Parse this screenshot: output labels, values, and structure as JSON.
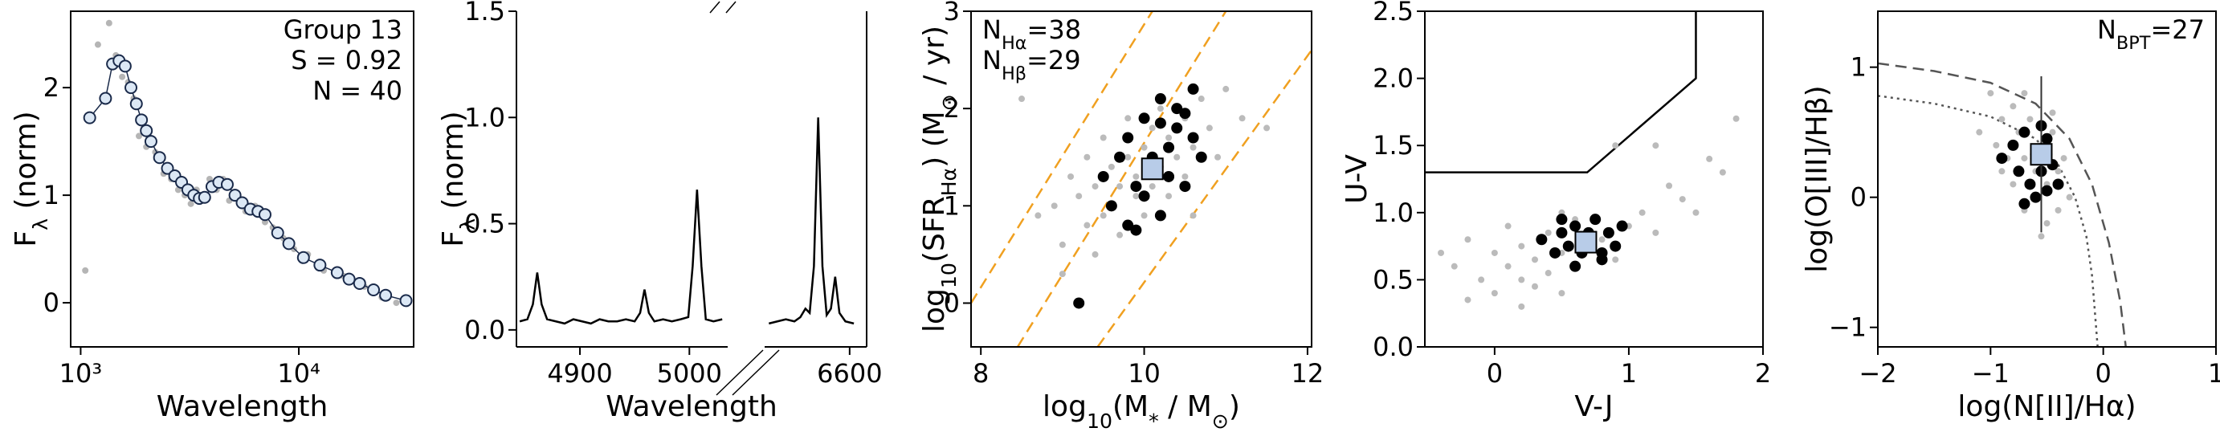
{
  "chart_data": [
    {
      "type": "scatter",
      "xscale": "log",
      "xlim": [
        900,
        33600
      ],
      "ylim": [
        -0.41,
        2.71
      ],
      "xticks": [
        {
          "value": 1000,
          "label": "10³"
        },
        {
          "value": 10000,
          "label": "10⁴"
        }
      ],
      "yticks": [
        0,
        1,
        2
      ],
      "xlabel": "Wavelength",
      "ylabel": [
        {
          "text": "F"
        },
        {
          "text": "λ",
          "sub": true
        },
        {
          "text": " (norm)"
        }
      ],
      "annotation_corner": "upper right",
      "annotations": [
        [
          {
            "text": "Group 13"
          }
        ],
        [
          {
            "text": "S = 0.92"
          }
        ],
        [
          {
            "text": "N = 40"
          }
        ]
      ],
      "series": [
        {
          "kind": "points",
          "marker": "dot",
          "color": "#b5b5b5",
          "x": [
            1050,
            1200,
            1350,
            1450,
            1550,
            1650,
            1750,
            1850,
            2000,
            2200,
            2400,
            2600,
            2800,
            3000,
            3200,
            3400,
            3600,
            3900,
            4200,
            4500,
            4800,
            5200,
            5700,
            6300,
            7000,
            7600,
            8500,
            9500,
            11000,
            13000,
            16000,
            20000,
            24000,
            28000
          ],
          "y": [
            0.3,
            2.4,
            2.6,
            2.3,
            2.1,
            2.05,
            1.9,
            1.55,
            1.45,
            1.4,
            1.2,
            1.15,
            1.05,
            1.0,
            0.92,
            1.05,
            0.95,
            1.15,
            1.05,
            1.15,
            0.95,
            0.98,
            0.85,
            0.9,
            0.75,
            0.7,
            0.6,
            0.5,
            0.45,
            0.3,
            0.25,
            0.15,
            0.05,
            0.0
          ]
        },
        {
          "kind": "line",
          "marker": "open",
          "color": "#1a2a4a",
          "edgecolor": "#1a2a4a",
          "fill": "#dce8f5",
          "x": [
            1100,
            1300,
            1400,
            1500,
            1600,
            1700,
            1800,
            1900,
            2000,
            2100,
            2300,
            2500,
            2700,
            2900,
            3100,
            3300,
            3500,
            3700,
            4000,
            4300,
            4700,
            5100,
            5500,
            6000,
            6500,
            7000,
            8000,
            9000,
            10500,
            12500,
            15000,
            17000,
            19000,
            22000,
            25000,
            31000
          ],
          "y": [
            1.72,
            1.9,
            2.22,
            2.25,
            2.2,
            2.0,
            1.85,
            1.7,
            1.6,
            1.5,
            1.35,
            1.25,
            1.18,
            1.12,
            1.05,
            1.0,
            0.97,
            0.98,
            1.08,
            1.12,
            1.1,
            1.0,
            0.93,
            0.87,
            0.85,
            0.82,
            0.65,
            0.55,
            0.42,
            0.35,
            0.28,
            0.22,
            0.18,
            0.12,
            0.07,
            0.02
          ]
        }
      ]
    },
    {
      "type": "broken-line",
      "ylim": [
        -0.08,
        1.5
      ],
      "yticks": [
        {
          "value": 0,
          "label": "0.0"
        },
        0.5,
        {
          "value": 1,
          "label": "1.0"
        },
        1.5
      ],
      "xlabel": "Wavelength",
      "ylabel": [
        {
          "text": "F"
        },
        {
          "text": "λ",
          "sub": true
        },
        {
          "text": " (norm)"
        }
      ],
      "color": "#000000",
      "segments": [
        {
          "xlim": [
            4842,
            5035
          ],
          "xticks": [
            4900,
            5000
          ],
          "x": [
            4845,
            4852,
            4857,
            4861,
            4865,
            4870,
            4878,
            4886,
            4894,
            4902,
            4910,
            4918,
            4926,
            4934,
            4942,
            4950,
            4955,
            4959,
            4963,
            4968,
            4976,
            4984,
            4992,
            4999,
            5003,
            5007,
            5011,
            5015,
            5022,
            5030
          ],
          "y": [
            0.04,
            0.05,
            0.12,
            0.27,
            0.12,
            0.05,
            0.04,
            0.03,
            0.05,
            0.04,
            0.03,
            0.05,
            0.04,
            0.04,
            0.05,
            0.04,
            0.08,
            0.19,
            0.08,
            0.04,
            0.05,
            0.04,
            0.05,
            0.06,
            0.3,
            0.66,
            0.3,
            0.05,
            0.04,
            0.05
          ]
        },
        {
          "xlim": [
            6500,
            6620
          ],
          "xticks": [
            6600
          ],
          "x": [
            6505,
            6515,
            6525,
            6535,
            6542,
            6548,
            6553,
            6558,
            6563,
            6568,
            6573,
            6578,
            6583,
            6588,
            6595,
            6605
          ],
          "y": [
            0.03,
            0.04,
            0.05,
            0.04,
            0.06,
            0.1,
            0.08,
            0.3,
            1.0,
            0.3,
            0.07,
            0.1,
            0.25,
            0.08,
            0.04,
            0.03
          ]
        }
      ]
    },
    {
      "type": "scatter",
      "xlim": [
        7.88,
        12.05
      ],
      "ylim": [
        -0.45,
        3
      ],
      "xticks": [
        8,
        10,
        12
      ],
      "yticks": [
        0,
        1,
        2,
        3
      ],
      "xlabel": [
        {
          "text": "log"
        },
        {
          "text": "10",
          "sub": true
        },
        {
          "text": "(M"
        },
        {
          "text": "*",
          "sub": true
        },
        {
          "text": " / M"
        },
        {
          "text": "⊙",
          "sub": true
        },
        {
          "text": ")"
        }
      ],
      "ylabel": [
        {
          "text": "log"
        },
        {
          "text": "10",
          "sub": true
        },
        {
          "text": "(SFR"
        },
        {
          "text": "Hα",
          "sub": true
        },
        {
          "text": ") (M"
        },
        {
          "text": "⊙",
          "sub": true
        },
        {
          "text": " / yr)"
        }
      ],
      "annotation_corner": "upper left",
      "annotations": [
        [
          {
            "text": "N"
          },
          {
            "text": "Hα",
            "sub": true
          },
          {
            "text": "=38"
          }
        ],
        [
          {
            "text": "N"
          },
          {
            "text": "Hβ",
            "sub": true
          },
          {
            "text": "=29"
          }
        ]
      ],
      "series": [
        {
          "kind": "line",
          "color": "#f0a020",
          "dash": true,
          "x": [
            7.88,
            10.1
          ],
          "y": [
            0,
            3
          ]
        },
        {
          "kind": "line",
          "color": "#f0a020",
          "dash": true,
          "x": [
            8.45,
            11.0
          ],
          "y": [
            -0.45,
            3
          ]
        },
        {
          "kind": "line",
          "color": "#f0a020",
          "dash": true,
          "x": [
            9.43,
            12.05
          ],
          "y": [
            -0.45,
            2.6
          ]
        },
        {
          "kind": "points",
          "marker": "dot",
          "color": "#bbbbbb",
          "x": [
            8.7,
            8.9,
            9.0,
            9.1,
            9.2,
            9.3,
            9.3,
            9.4,
            9.5,
            9.5,
            9.6,
            9.6,
            9.7,
            9.7,
            9.8,
            9.8,
            9.9,
            9.9,
            10.0,
            10.0,
            10.1,
            10.1,
            10.2,
            10.2,
            10.3,
            10.3,
            10.4,
            10.5,
            10.5,
            10.6,
            10.7,
            10.8,
            10.9,
            11.0,
            11.2,
            9.0,
            9.4,
            10.6,
            11.5,
            8.5
          ],
          "y": [
            0.9,
            1.0,
            0.6,
            1.3,
            1.1,
            0.8,
            1.5,
            1.2,
            0.9,
            1.7,
            1.4,
            1.0,
            1.2,
            0.7,
            1.5,
            1.9,
            1.1,
            1.3,
            0.9,
            1.6,
            1.8,
            1.2,
            1.4,
            2.0,
            1.1,
            1.7,
            1.5,
            1.9,
            1.3,
            1.6,
            2.1,
            1.8,
            1.5,
            2.2,
            1.9,
            0.3,
            0.5,
            0.9,
            1.8,
            2.1
          ]
        },
        {
          "kind": "points",
          "marker": "big",
          "color": "#000000",
          "x": [
            9.5,
            9.6,
            9.7,
            9.8,
            9.8,
            9.9,
            10.0,
            10.0,
            10.1,
            10.2,
            10.2,
            10.3,
            10.3,
            10.4,
            10.4,
            10.5,
            10.6,
            10.6,
            10.7,
            9.2,
            9.9,
            10.2,
            10.5
          ],
          "y": [
            1.3,
            1.0,
            1.5,
            1.7,
            0.8,
            1.2,
            1.9,
            1.1,
            1.5,
            2.1,
            0.9,
            1.6,
            1.3,
            1.8,
            2.0,
            1.2,
            1.7,
            2.2,
            1.5,
            0.0,
            0.75,
            1.85,
            1.95
          ]
        },
        {
          "kind": "points",
          "marker": "square",
          "color": "#b8cce8",
          "edgecolor": "#000000",
          "x": [
            10.1
          ],
          "y": [
            1.38
          ]
        }
      ]
    },
    {
      "type": "scatter",
      "xlim": [
        -0.52,
        2.0
      ],
      "ylim": [
        0,
        2.5
      ],
      "xticks": [
        0,
        1,
        2
      ],
      "yticks": [
        {
          "value": 0,
          "label": "0.0"
        },
        0.5,
        {
          "value": 1,
          "label": "1.0"
        },
        1.5,
        {
          "value": 2,
          "label": "2.0"
        },
        2.5
      ],
      "xlabel": "V-J",
      "ylabel": "U-V",
      "series": [
        {
          "kind": "line",
          "color": "#000000",
          "x": [
            -0.52,
            0.69,
            1.5,
            1.5
          ],
          "y": [
            1.3,
            1.3,
            2.0,
            2.5
          ]
        },
        {
          "kind": "points",
          "marker": "dot",
          "color": "#bbbbbb",
          "x": [
            -0.4,
            -0.3,
            -0.2,
            -0.1,
            0.0,
            0.0,
            0.1,
            0.1,
            0.2,
            0.2,
            0.3,
            0.3,
            0.4,
            0.4,
            0.5,
            0.5,
            0.6,
            0.6,
            0.7,
            0.8,
            0.9,
            1.0,
            1.1,
            1.2,
            1.3,
            1.4,
            1.5,
            1.6,
            1.7,
            0.5,
            0.9,
            1.2,
            0.2,
            -0.2,
            1.8
          ],
          "y": [
            0.7,
            0.6,
            0.8,
            0.5,
            0.7,
            0.4,
            0.6,
            0.9,
            0.5,
            0.75,
            0.65,
            0.45,
            0.55,
            0.85,
            0.7,
            0.4,
            0.6,
            0.95,
            0.75,
            0.8,
            0.65,
            0.9,
            1.0,
            0.85,
            1.2,
            1.1,
            1.0,
            1.4,
            1.3,
            1.0,
            1.5,
            1.5,
            0.3,
            0.35,
            1.7
          ]
        },
        {
          "kind": "points",
          "marker": "big",
          "color": "#000000",
          "x": [
            0.35,
            0.45,
            0.5,
            0.55,
            0.6,
            0.65,
            0.7,
            0.75,
            0.8,
            0.85,
            0.9,
            0.95,
            0.6,
            0.7,
            0.8,
            0.5
          ],
          "y": [
            0.8,
            0.7,
            0.85,
            0.75,
            0.9,
            0.7,
            0.8,
            0.95,
            0.65,
            0.85,
            0.75,
            0.9,
            0.6,
            0.85,
            0.7,
            0.95
          ]
        },
        {
          "kind": "points",
          "marker": "square",
          "color": "#b8cce8",
          "edgecolor": "#000000",
          "x": [
            0.68
          ],
          "y": [
            0.78
          ]
        }
      ]
    },
    {
      "type": "scatter",
      "xlim": [
        -2,
        1
      ],
      "ylim": [
        -1.15,
        1.43
      ],
      "xticks": [
        {
          "value": -2,
          "label": "−2"
        },
        {
          "value": -1,
          "label": "−1"
        },
        0,
        1
      ],
      "yticks": [
        {
          "value": -1,
          "label": "−1"
        },
        0,
        1
      ],
      "xlabel": "log(N[II]/Hα)",
      "ylabel": "log(O[III]/Hβ)",
      "annotation_corner": "upper right",
      "annotations": [
        [
          {
            "text": "N"
          },
          {
            "text": "BPT",
            "sub": true
          },
          {
            "text": "=27"
          }
        ]
      ],
      "series": [
        {
          "kind": "line",
          "color": "#555555",
          "dash": true,
          "x": [
            -2,
            -1.5,
            -1,
            -0.6,
            -0.3,
            -0.1,
            0.05,
            0.15,
            0.2
          ],
          "y": [
            1.03,
            0.97,
            0.88,
            0.72,
            0.45,
            0.1,
            -0.35,
            -0.8,
            -1.15
          ]
        },
        {
          "kind": "line",
          "color": "#555555",
          "dot": true,
          "x": [
            -2,
            -1.5,
            -1,
            -0.6,
            -0.4,
            -0.25,
            -0.15,
            -0.1,
            -0.05
          ],
          "y": [
            0.78,
            0.72,
            0.62,
            0.45,
            0.25,
            0.0,
            -0.3,
            -0.6,
            -1.15
          ]
        },
        {
          "kind": "points",
          "marker": "dot",
          "color": "#bbbbbb",
          "x": [
            -1.1,
            -1.0,
            -0.95,
            -0.9,
            -0.85,
            -0.8,
            -0.8,
            -0.75,
            -0.7,
            -0.7,
            -0.65,
            -0.6,
            -0.6,
            -0.55,
            -0.5,
            -0.5,
            -0.45,
            -0.4,
            -0.4,
            -0.35,
            -0.3,
            -0.9,
            -0.7,
            -0.55,
            -0.45
          ],
          "y": [
            0.5,
            0.8,
            0.4,
            0.6,
            0.3,
            0.7,
            0.1,
            0.5,
            0.3,
            -0.1,
            0.6,
            0.2,
            0.0,
            0.4,
            -0.2,
            0.1,
            0.5,
            0.2,
            -0.1,
            0.3,
            0.0,
            0.2,
            0.8,
            -0.3,
            0.65
          ]
        },
        {
          "kind": "points",
          "marker": "big",
          "color": "#000000",
          "x": [
            -0.9,
            -0.8,
            -0.75,
            -0.7,
            -0.65,
            -0.6,
            -0.6,
            -0.55,
            -0.5,
            -0.5,
            -0.45,
            -0.4,
            -0.7,
            -0.55
          ],
          "y": [
            0.3,
            0.4,
            0.2,
            0.5,
            0.1,
            0.3,
            0.0,
            0.2,
            0.45,
            0.05,
            0.25,
            0.1,
            -0.05,
            0.55
          ]
        },
        {
          "kind": "points",
          "marker": "square",
          "color": "#b8cce8",
          "edgecolor": "#000000",
          "x": [
            -0.55
          ],
          "y": [
            0.33
          ],
          "xerr": [
            0.1
          ],
          "yerr": [
            0.6
          ]
        }
      ]
    }
  ]
}
